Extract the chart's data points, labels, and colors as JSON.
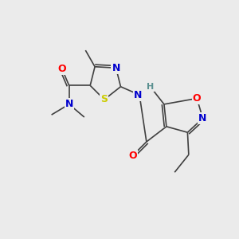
{
  "bg_color": "#ebebeb",
  "atom_colors": {
    "C": "#404040",
    "N": "#0000cd",
    "O": "#ff0000",
    "S": "#cccc00",
    "H": "#5a9090"
  },
  "bond_color": "#404040",
  "line_width": 1.2,
  "font_size_atom": 9,
  "font_size_label": 8,
  "figsize": [
    3.0,
    3.0
  ],
  "dpi": 100,
  "xlim": [
    0,
    10
  ],
  "ylim": [
    0,
    10
  ]
}
